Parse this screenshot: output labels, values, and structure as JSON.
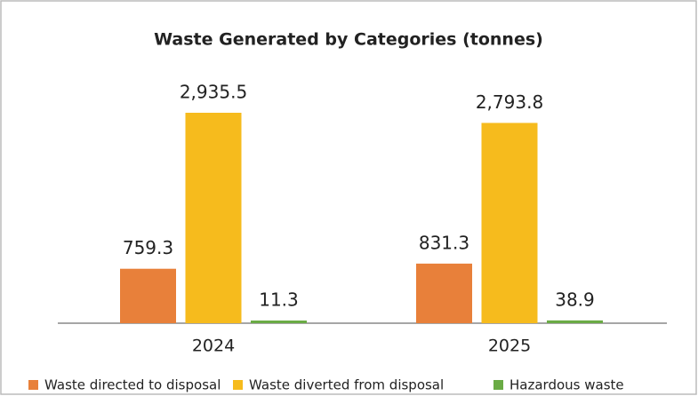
{
  "chart_data": {
    "type": "bar",
    "title": "Waste Generated by Categories (tonnes)",
    "categories": [
      "2024",
      "2025"
    ],
    "series": [
      {
        "name": "Waste directed to disposal",
        "color": "#e8803a",
        "values": [
          759.3,
          831.3
        ],
        "value_labels": [
          "759.3",
          "831.3"
        ]
      },
      {
        "name": "Waste diverted from disposal",
        "color": "#f6bb1d",
        "values": [
          2935.5,
          2793.8
        ],
        "value_labels": [
          "2,935.5",
          "2,793.8"
        ]
      },
      {
        "name": "Hazardous waste",
        "color": "#6aab45",
        "values": [
          11.3,
          38.9
        ],
        "value_labels": [
          "11.3",
          "38.9"
        ]
      }
    ],
    "legend": "bottom"
  }
}
